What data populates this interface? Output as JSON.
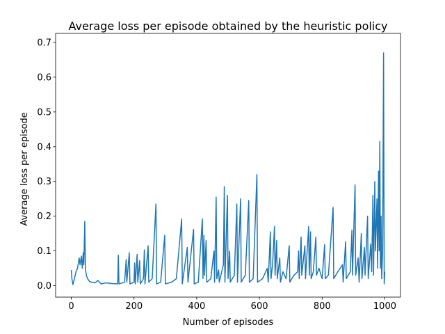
{
  "chart_data": {
    "type": "line",
    "title": "Average loss per episode obtained by the heuristic policy",
    "x_label": "Number of episodes",
    "y_label": "Average loss per episode",
    "xlim": [
      -50,
      1050
    ],
    "ylim": [
      -0.033,
      0.726
    ],
    "xticks": [
      0,
      200,
      400,
      600,
      800,
      1000
    ],
    "yticks": [
      {
        "value": 0,
        "label": "0.0"
      },
      0.1,
      0.2,
      0.3,
      0.4,
      0.5,
      0.6,
      0.7
    ],
    "series": [
      {
        "color": "#1f77b4",
        "x": [
          0,
          2,
          5,
          10,
          15,
          20,
          25,
          28,
          32,
          35,
          38,
          40,
          43,
          45,
          48,
          52,
          58,
          65,
          75,
          85,
          95,
          110,
          130,
          148,
          150,
          152,
          170,
          175,
          177,
          185,
          187,
          200,
          202,
          204,
          210,
          212,
          218,
          220,
          230,
          233,
          235,
          245,
          247,
          258,
          270,
          272,
          285,
          298,
          300,
          320,
          335,
          352,
          354,
          370,
          372,
          390,
          392,
          405,
          418,
          420,
          423,
          425,
          430,
          432,
          445,
          455,
          457,
          462,
          464,
          470,
          472,
          485,
          488,
          490,
          498,
          500,
          505,
          507,
          520,
          528,
          530,
          540,
          542,
          555,
          566,
          568,
          580,
          592,
          594,
          610,
          625,
          628,
          635,
          637,
          642,
          648,
          650,
          655,
          657,
          665,
          667,
          675,
          685,
          695,
          697,
          710,
          722,
          725,
          727,
          733,
          735,
          745,
          747,
          757,
          759,
          763,
          765,
          772,
          780,
          782,
          790,
          800,
          808,
          810,
          820,
          835,
          837,
          850,
          865,
          867,
          875,
          877,
          890,
          895,
          897,
          905,
          907,
          915,
          918,
          925,
          927,
          935,
          937,
          945,
          947,
          955,
          958,
          962,
          964,
          968,
          970,
          975,
          977,
          980,
          982,
          984,
          986,
          988,
          990,
          993,
          996,
          998,
          1000
        ],
        "values": [
          0.045,
          0.02,
          0.003,
          0.02,
          0.04,
          0.05,
          0.08,
          0.06,
          0.085,
          0.05,
          0.095,
          0.06,
          0.185,
          0.05,
          0.03,
          0.02,
          0.012,
          0.01,
          0.008,
          0.015,
          0.005,
          0.008,
          0.006,
          0.005,
          0.088,
          0.005,
          0.01,
          0.075,
          0.01,
          0.095,
          0.005,
          0.01,
          0.065,
          0.005,
          0.09,
          0.01,
          0.072,
          0.005,
          0.02,
          0.103,
          0.005,
          0.115,
          0.01,
          0.02,
          0.235,
          0.005,
          0.01,
          0.145,
          0.005,
          0.01,
          0.02,
          0.192,
          0.005,
          0.11,
          0.01,
          0.162,
          0.005,
          0.01,
          0.192,
          0.02,
          0.145,
          0.03,
          0.13,
          0.01,
          0.02,
          0.1,
          0.01,
          0.255,
          0.02,
          0.045,
          0.01,
          0.06,
          0.285,
          0.01,
          0.26,
          0.02,
          0.1,
          0.01,
          0.03,
          0.235,
          0.01,
          0.25,
          0.01,
          0.03,
          0.245,
          0.01,
          0.02,
          0.32,
          0.01,
          0.02,
          0.05,
          0.01,
          0.155,
          0.02,
          0.06,
          0.17,
          0.03,
          0.13,
          0.02,
          0.08,
          0.01,
          0.04,
          0.02,
          0.115,
          0.01,
          0.03,
          0.04,
          0.1,
          0.02,
          0.14,
          0.03,
          0.115,
          0.02,
          0.17,
          0.03,
          0.155,
          0.02,
          0.04,
          0.14,
          0.03,
          0.05,
          0.02,
          0.118,
          0.02,
          0.03,
          0.225,
          0.02,
          0.04,
          0.06,
          0.01,
          0.127,
          0.02,
          0.04,
          0.16,
          0.03,
          0.29,
          0.03,
          0.08,
          0.01,
          0.15,
          0.02,
          0.11,
          0.03,
          0.2,
          0.02,
          0.12,
          0.04,
          0.26,
          0.03,
          0.3,
          0.1,
          0.25,
          0.05,
          0.33,
          0.1,
          0.415,
          0.05,
          0.2,
          0.02,
          0.1,
          0.67,
          0.005,
          0.04
        ]
      }
    ]
  }
}
